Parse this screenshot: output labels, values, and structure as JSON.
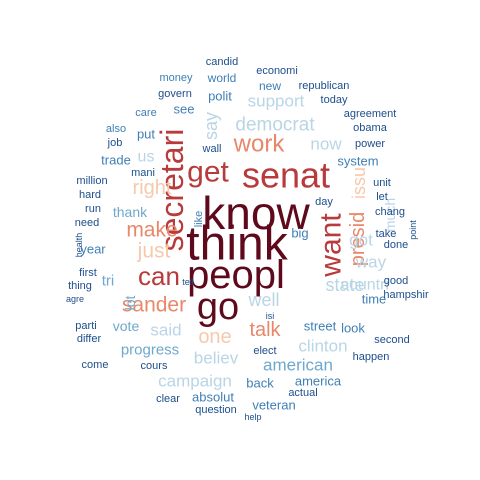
{
  "palette": {
    "darkest": "#5e0a1c",
    "dark_red": "#b83a3b",
    "salmon": "#e8876a",
    "peach": "#f6c9ad",
    "light_blue": "#b9d5e6",
    "mid_blue": "#6ea8cd",
    "blue": "#3f7fb6",
    "dark_blue": "#1d4e8c"
  },
  "words": [
    {
      "text": "know",
      "color": "darkest"
    },
    {
      "text": "think",
      "color": "darkest"
    },
    {
      "text": "peopl",
      "color": "darkest"
    },
    {
      "text": "go",
      "color": "darkest"
    },
    {
      "text": "senat",
      "color": "dark_red"
    },
    {
      "text": "secretari",
      "color": "dark_red"
    },
    {
      "text": "want",
      "color": "dark_red"
    },
    {
      "text": "get",
      "color": "dark_red"
    },
    {
      "text": "can",
      "color": "dark_red"
    },
    {
      "text": "work",
      "color": "salmon"
    },
    {
      "text": "presid",
      "color": "salmon"
    },
    {
      "text": "make",
      "color": "salmon"
    },
    {
      "text": "talk",
      "color": "salmon"
    },
    {
      "text": "sander",
      "color": "salmon"
    },
    {
      "text": "one",
      "color": "peach"
    },
    {
      "text": "just",
      "color": "peach"
    },
    {
      "text": "right",
      "color": "peach"
    },
    {
      "text": "issu",
      "color": "peach"
    },
    {
      "text": "democrat",
      "color": "light_blue"
    },
    {
      "text": "say",
      "color": "light_blue"
    },
    {
      "text": "support",
      "color": "light_blue"
    },
    {
      "text": "now",
      "color": "light_blue"
    },
    {
      "text": "state",
      "color": "light_blue"
    },
    {
      "text": "got",
      "color": "light_blue"
    },
    {
      "text": "well",
      "color": "light_blue"
    },
    {
      "text": "said",
      "color": "light_blue"
    },
    {
      "text": "believ",
      "color": "light_blue"
    },
    {
      "text": "campaign",
      "color": "light_blue"
    },
    {
      "text": "clinton",
      "color": "light_blue"
    },
    {
      "text": "countri",
      "color": "light_blue"
    },
    {
      "text": "way",
      "color": "light_blue"
    },
    {
      "text": "much",
      "color": "light_blue"
    },
    {
      "text": "us",
      "color": "light_blue"
    },
    {
      "text": "american",
      "color": "mid_blue"
    },
    {
      "text": "progress",
      "color": "mid_blue"
    },
    {
      "text": "thank",
      "color": "mid_blue"
    },
    {
      "text": "tri",
      "color": "mid_blue"
    },
    {
      "text": "lot",
      "color": "mid_blue"
    },
    {
      "text": "vote",
      "color": "mid_blue"
    },
    {
      "text": "street",
      "color": "blue"
    },
    {
      "text": "look",
      "color": "blue"
    },
    {
      "text": "time",
      "color": "blue"
    },
    {
      "text": "big",
      "color": "blue"
    },
    {
      "text": "america",
      "color": "blue"
    },
    {
      "text": "back",
      "color": "blue"
    },
    {
      "text": "absolut",
      "color": "blue"
    },
    {
      "text": "veteran",
      "color": "blue"
    },
    {
      "text": "system",
      "color": "blue"
    },
    {
      "text": "polit",
      "color": "blue"
    },
    {
      "text": "see",
      "color": "blue"
    },
    {
      "text": "put",
      "color": "blue"
    },
    {
      "text": "trade",
      "color": "blue"
    },
    {
      "text": "year",
      "color": "blue"
    },
    {
      "text": "world",
      "color": "blue"
    },
    {
      "text": "new",
      "color": "blue"
    },
    {
      "text": "economi",
      "color": "dark_blue"
    },
    {
      "text": "candid",
      "color": "dark_blue"
    },
    {
      "text": "money",
      "color": "blue"
    },
    {
      "text": "republican",
      "color": "dark_blue"
    },
    {
      "text": "govern",
      "color": "dark_blue"
    },
    {
      "text": "today",
      "color": "dark_blue"
    },
    {
      "text": "care",
      "color": "blue"
    },
    {
      "text": "agreement",
      "color": "dark_blue"
    },
    {
      "text": "also",
      "color": "blue"
    },
    {
      "text": "obama",
      "color": "dark_blue"
    },
    {
      "text": "job",
      "color": "dark_blue"
    },
    {
      "text": "power",
      "color": "dark_blue"
    },
    {
      "text": "mani",
      "color": "dark_blue"
    },
    {
      "text": "wall",
      "color": "dark_blue"
    },
    {
      "text": "like",
      "color": "blue"
    },
    {
      "text": "million",
      "color": "dark_blue"
    },
    {
      "text": "hard",
      "color": "dark_blue"
    },
    {
      "text": "run",
      "color": "dark_blue"
    },
    {
      "text": "need",
      "color": "dark_blue"
    },
    {
      "text": "day",
      "color": "dark_blue"
    },
    {
      "text": "unit",
      "color": "dark_blue"
    },
    {
      "text": "let",
      "color": "dark_blue"
    },
    {
      "text": "chang",
      "color": "dark_blue"
    },
    {
      "text": "take",
      "color": "dark_blue"
    },
    {
      "text": "point",
      "color": "dark_blue"
    },
    {
      "text": "health",
      "color": "dark_blue"
    },
    {
      "text": "done",
      "color": "dark_blue"
    },
    {
      "text": "first",
      "color": "dark_blue"
    },
    {
      "text": "thing",
      "color": "dark_blue"
    },
    {
      "text": "agre",
      "color": "dark_blue"
    },
    {
      "text": "good",
      "color": "dark_blue"
    },
    {
      "text": "hampshir",
      "color": "dark_blue"
    },
    {
      "text": "tell",
      "color": "dark_blue"
    },
    {
      "text": "isi",
      "color": "dark_blue"
    },
    {
      "text": "parti",
      "color": "dark_blue"
    },
    {
      "text": "differ",
      "color": "dark_blue"
    },
    {
      "text": "second",
      "color": "dark_blue"
    },
    {
      "text": "elect",
      "color": "dark_blue"
    },
    {
      "text": "happen",
      "color": "dark_blue"
    },
    {
      "text": "come",
      "color": "dark_blue"
    },
    {
      "text": "cours",
      "color": "dark_blue"
    },
    {
      "text": "actual",
      "color": "dark_blue"
    },
    {
      "text": "clear",
      "color": "dark_blue"
    },
    {
      "text": "question",
      "color": "dark_blue"
    },
    {
      "text": "help",
      "color": "dark_blue"
    }
  ]
}
